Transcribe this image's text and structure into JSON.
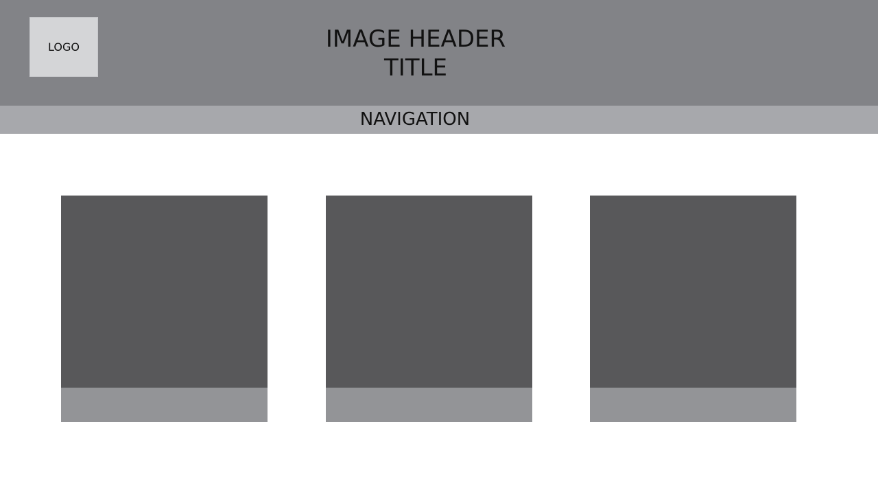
{
  "colors": {
    "header_bg": "#828387",
    "nav_bg": "#a7a8ac",
    "logo_bg": "#d4d5d7",
    "card_image_bg": "#58585a",
    "card_caption_bg": "#939497",
    "page_bg": "#ffffff"
  },
  "header": {
    "logo_label": "LOGO",
    "title_line1": "IMAGE HEADER",
    "title_line2": "TITLE"
  },
  "nav": {
    "label": "NAVIGATION"
  },
  "cards": [
    {
      "caption": ""
    },
    {
      "caption": ""
    },
    {
      "caption": ""
    }
  ]
}
